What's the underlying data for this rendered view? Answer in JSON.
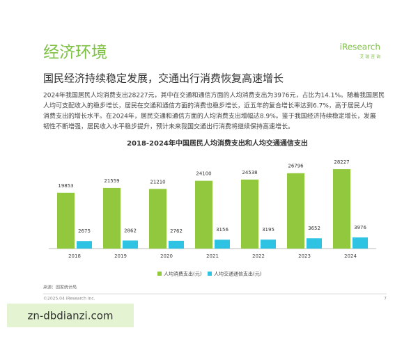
{
  "header": {
    "title": "经济环境",
    "logo": "iResearch",
    "logo_sub": "艾 瑞 咨 询"
  },
  "subtitle": "国民经济持续稳定发展，交通出行消费恢复高速增长",
  "paragraph": [
    "2024年我国居民人均消费支出28227元，其中在交通和通信方面的人均消费支出为3976元，占比为14.1%。随着我国居民",
    "人均可支配收入的稳步增长，居民在交通和通信方面的消费也稳步增长，近五年的复合增长率达到6.7%，高于居民人均",
    "消费支出的增长水平。在2024年，居民交通和通信方面的人均消费支出增幅达8.9%。鉴于我国经济持续稳定增长，发展",
    "韧性不断增强，居民收入水平稳步提升，预计未来我国交通出行消费将继续保持高速增长。"
  ],
  "chart_data": {
    "type": "bar",
    "title": "2018-2024年中国居民人均消费支出和人均交通通信支出",
    "categories": [
      "2018",
      "2019",
      "2020",
      "2021",
      "2022",
      "2023",
      "2024"
    ],
    "series": [
      {
        "name": "人均消费支出(元)",
        "color": "#92c83e",
        "values": [
          19853,
          21559,
          21210,
          24100,
          24538,
          26796,
          28227
        ]
      },
      {
        "name": "人均交通通信支出(元)",
        "color": "#2fc3e3",
        "values": [
          2675,
          2862,
          2762,
          3156,
          3195,
          3652,
          3976
        ]
      }
    ],
    "legend": "bottom"
  },
  "source": "来源：国家统计局",
  "footer": {
    "copyright": "©2025.04 iResearch Inc.",
    "page": "7"
  },
  "watermark": "zn-dbdianzi.com"
}
